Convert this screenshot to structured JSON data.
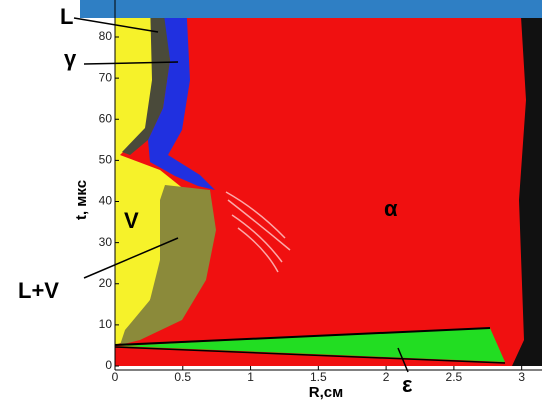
{
  "chart_data": {
    "type": "phase-map",
    "xlabel": "R,см",
    "ylabel": "t, мкс",
    "xlim": [
      0,
      3.15
    ],
    "ylim": [
      0,
      89
    ],
    "xticks": [
      0,
      0.5,
      1,
      1.5,
      2,
      2.5,
      3
    ],
    "yticks": [
      0,
      10,
      20,
      30,
      40,
      50,
      60,
      70,
      80
    ],
    "annotations": [
      "L",
      "γ",
      "V",
      "L+V",
      "α",
      "ε"
    ]
  }
}
